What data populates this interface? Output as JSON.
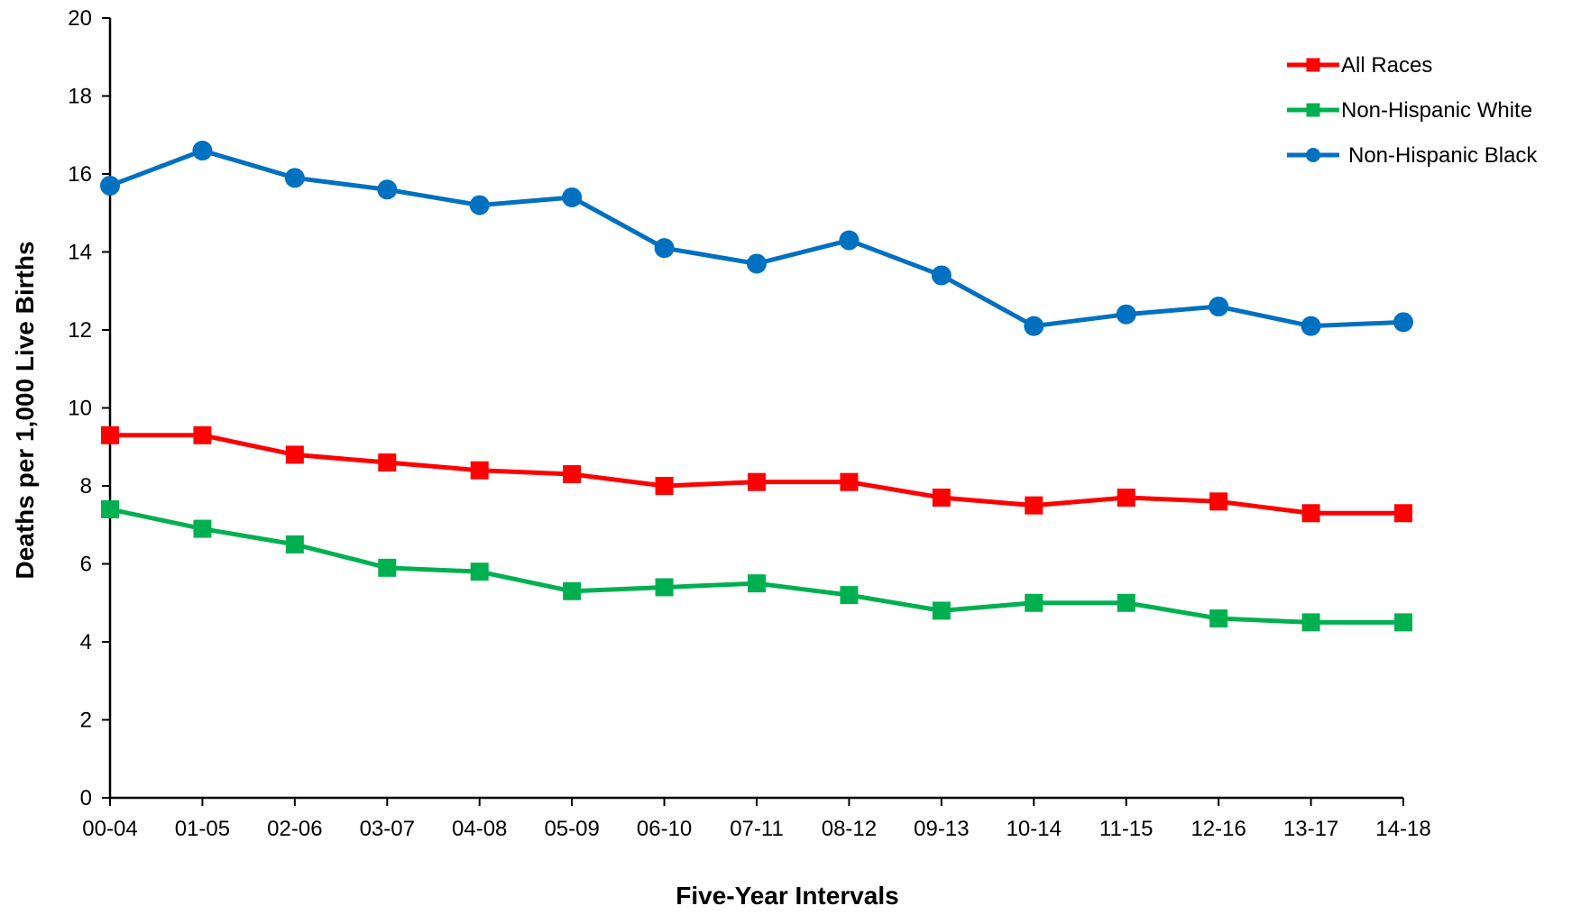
{
  "chart_data": {
    "type": "line",
    "title": "",
    "xlabel": "Five-Year Intervals",
    "ylabel": "Deaths per 1,000 Live Births",
    "ylim": [
      0,
      20
    ],
    "yticks": [
      "0",
      "2",
      "4",
      "6",
      "8",
      "10",
      "12",
      "14",
      "16",
      "18",
      "20"
    ],
    "categories": [
      "00-04",
      "01-05",
      "02-06",
      "03-07",
      "04-08",
      "05-09",
      "06-10",
      "07-11",
      "08-12",
      "09-13",
      "10-14",
      "11-15",
      "12-16",
      "13-17",
      "14-18"
    ],
    "grid": false,
    "legend_position": "top-right",
    "series": [
      {
        "name": "All Races",
        "color": "#ff0000",
        "marker": "square",
        "values": [
          9.3,
          9.3,
          8.8,
          8.6,
          8.4,
          8.3,
          8.0,
          8.1,
          8.1,
          7.7,
          7.5,
          7.7,
          7.6,
          7.3,
          7.3
        ]
      },
      {
        "name": "Non-Hispanic White",
        "color": "#00b050",
        "marker": "square",
        "values": [
          7.4,
          6.9,
          6.5,
          5.9,
          5.8,
          5.3,
          5.4,
          5.5,
          5.2,
          4.8,
          5.0,
          5.0,
          4.6,
          4.5,
          4.5
        ]
      },
      {
        "name": "Non-Hispanic Black",
        "color": "#0070c0",
        "marker": "circle",
        "values": [
          15.7,
          16.6,
          15.9,
          15.6,
          15.2,
          15.4,
          14.1,
          13.7,
          14.3,
          13.4,
          12.1,
          12.4,
          12.6,
          12.1,
          12.2
        ]
      }
    ]
  }
}
